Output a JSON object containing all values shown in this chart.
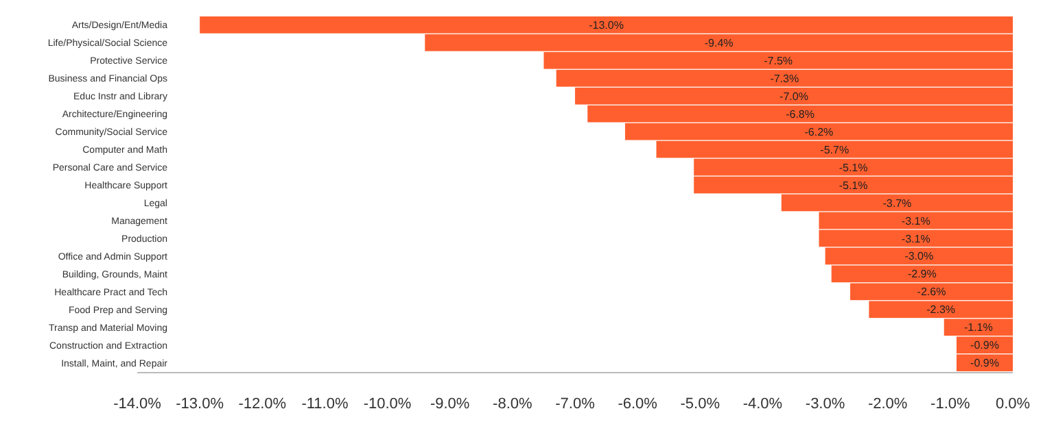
{
  "chart_data": {
    "type": "bar",
    "orientation": "horizontal",
    "categories": [
      "Arts/Design/Ent/Media",
      "Life/Physical/Social Science",
      "Protective Service",
      "Business and Financial Ops",
      "Educ Instr and Library",
      "Architecture/Engineering",
      "Community/Social Service",
      "Computer and Math",
      "Personal Care and Service",
      "Healthcare Support",
      "Legal",
      "Management",
      "Production",
      "Office and Admin Support",
      "Building, Grounds, Maint",
      "Healthcare Pract and Tech",
      "Food Prep and Serving",
      "Transp and Material Moving",
      "Construction and Extraction",
      "Install, Maint, and Repair"
    ],
    "values": [
      -13.0,
      -9.4,
      -7.5,
      -7.3,
      -7.0,
      -6.8,
      -6.2,
      -5.7,
      -5.1,
      -5.1,
      -3.7,
      -3.1,
      -3.1,
      -3.0,
      -2.9,
      -2.6,
      -2.3,
      -1.1,
      -0.9,
      -0.9
    ],
    "value_labels": [
      "-13.0%",
      "-9.4%",
      "-7.5%",
      "-7.3%",
      "-7.0%",
      "-6.8%",
      "-6.2%",
      "-5.7%",
      "-5.1%",
      "-5.1%",
      "-3.7%",
      "-3.1%",
      "-3.1%",
      "-3.0%",
      "-2.9%",
      "-2.6%",
      "-2.3%",
      "-1.1%",
      "-0.9%",
      "-0.9%"
    ],
    "color": "#ff5f2e",
    "xlim": [
      -14,
      0
    ],
    "xticks": [
      {
        "value": -14,
        "label": "-14.0%"
      },
      {
        "value": -13,
        "label": "-13.0%"
      },
      {
        "value": -12,
        "label": "-12.0%"
      },
      {
        "value": -11,
        "label": "-11.0%"
      },
      {
        "value": -10,
        "label": "-10.0%"
      },
      {
        "value": -9,
        "label": "-9.0%"
      },
      {
        "value": -8,
        "label": "-8.0%"
      },
      {
        "value": -7,
        "label": "-7.0%"
      },
      {
        "value": -6,
        "label": "-6.0%"
      },
      {
        "value": -5,
        "label": "-5.0%"
      },
      {
        "value": -4,
        "label": "-4.0%"
      },
      {
        "value": -3,
        "label": "-3.0%"
      },
      {
        "value": -2,
        "label": "-2.0%"
      },
      {
        "value": -1,
        "label": "-1.0%"
      },
      {
        "value": 0,
        "label": "0.0%"
      }
    ],
    "grid": false
  }
}
